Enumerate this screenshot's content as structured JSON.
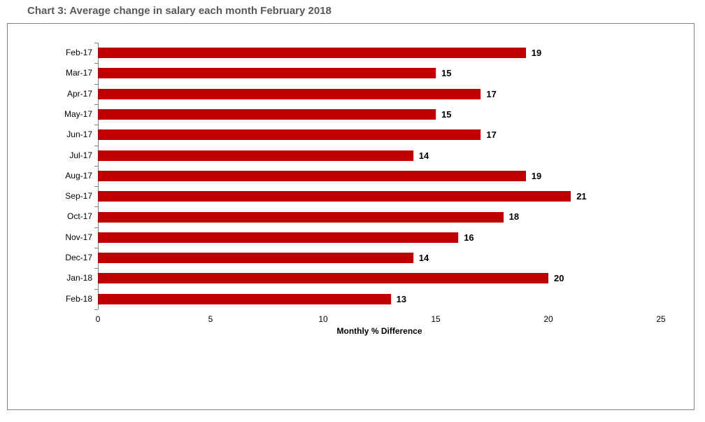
{
  "page": {
    "title": "Chart 3: Average change in salary each month February 2018"
  },
  "chart_data": {
    "type": "bar",
    "orientation": "horizontal",
    "title": "Chart 3: Average change in salary each month February 2018",
    "categories": [
      "Feb-17",
      "Mar-17",
      "Apr-17",
      "May-17",
      "Jun-17",
      "Jul-17",
      "Aug-17",
      "Sep-17",
      "Oct-17",
      "Nov-17",
      "Dec-17",
      "Jan-18",
      "Feb-18"
    ],
    "values": [
      19,
      15,
      17,
      15,
      17,
      14,
      19,
      21,
      18,
      16,
      14,
      20,
      13
    ],
    "data_labels": [
      "19",
      "15",
      "17",
      "15",
      "17",
      "14",
      "19",
      "21",
      "18",
      "16",
      "14",
      "20",
      "13"
    ],
    "xlabel": "Monthly % Difference",
    "ylabel": "",
    "xlim": [
      0,
      25
    ],
    "xticks": [
      "0",
      "5",
      "10",
      "15",
      "20",
      "25"
    ],
    "xtick_values": [
      0,
      5,
      10,
      15,
      20,
      25
    ],
    "grid": false,
    "legend": false,
    "bar_color": "#C00000",
    "axis_color": "#808080",
    "text_color": "#000000",
    "title_color": "#595959",
    "frame_border_color": "#808080",
    "background_color": "#ffffff"
  }
}
